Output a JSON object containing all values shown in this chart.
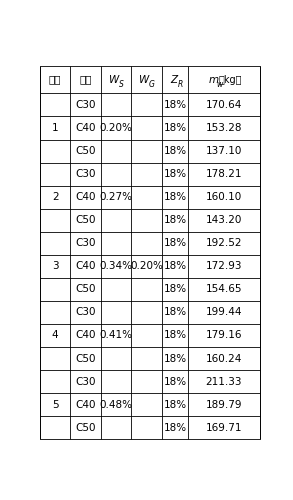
{
  "groups": [
    {
      "num": "1",
      "ws": "0.20%",
      "rows": [
        {
          "strength": "C30",
          "zr": "18%",
          "mw": "170.64"
        },
        {
          "strength": "C40",
          "zr": "18%",
          "mw": "153.28"
        },
        {
          "strength": "C50",
          "zr": "18%",
          "mw": "137.10"
        }
      ]
    },
    {
      "num": "2",
      "ws": "0.27%",
      "rows": [
        {
          "strength": "C30",
          "zr": "18%",
          "mw": "178.21"
        },
        {
          "strength": "C40",
          "zr": "18%",
          "mw": "160.10"
        },
        {
          "strength": "C50",
          "zr": "18%",
          "mw": "143.20"
        }
      ]
    },
    {
      "num": "3",
      "ws": "0.34%",
      "rows": [
        {
          "strength": "C30",
          "zr": "18%",
          "mw": "192.52"
        },
        {
          "strength": "C40",
          "zr": "18%",
          "mw": "172.93"
        },
        {
          "strength": "C50",
          "zr": "18%",
          "mw": "154.65"
        }
      ]
    },
    {
      "num": "4",
      "ws": "0.41%",
      "rows": [
        {
          "strength": "C30",
          "zr": "18%",
          "mw": "199.44"
        },
        {
          "strength": "C40",
          "zr": "18%",
          "mw": "179.16"
        },
        {
          "strength": "C50",
          "zr": "18%",
          "mw": "160.24"
        }
      ]
    },
    {
      "num": "5",
      "ws": "0.48%",
      "rows": [
        {
          "strength": "C30",
          "zr": "18%",
          "mw": "211.33"
        },
        {
          "strength": "C40",
          "zr": "18%",
          "mw": "189.79"
        },
        {
          "strength": "C50",
          "zr": "18%",
          "mw": "169.71"
        }
      ]
    }
  ],
  "wg_value": "0.20%",
  "wg_group_index": 2,
  "bg_color": "#ffffff",
  "line_color": "#000000",
  "text_color": "#000000",
  "font_size": 7.5,
  "col_lefts_rel": [
    0.0,
    0.138,
    0.275,
    0.415,
    0.555,
    0.67
  ],
  "col_rights_rel": [
    0.138,
    0.275,
    0.415,
    0.555,
    0.67,
    1.0
  ]
}
